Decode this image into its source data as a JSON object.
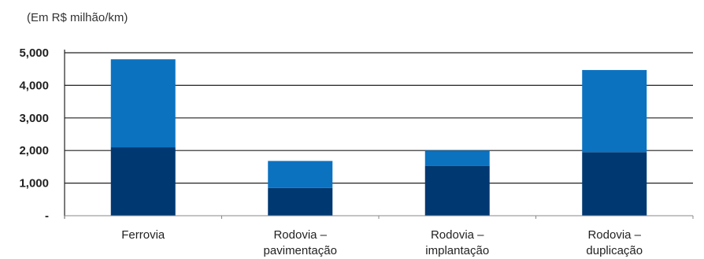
{
  "chart_data": {
    "type": "bar",
    "stacked": true,
    "unit_label": "(Em R$ milhão/km)",
    "categories": [
      [
        "Ferrovia"
      ],
      [
        "Rodovia –",
        "pavimentação"
      ],
      [
        "Rodovia –",
        "implantação"
      ],
      [
        "Rodovia –",
        "duplicação"
      ]
    ],
    "series": [
      {
        "values": [
          2100,
          850,
          1530,
          1950
        ],
        "color": "#003871"
      },
      {
        "values": [
          2700,
          830,
          470,
          2520
        ],
        "color": "#0b72c0"
      }
    ],
    "y_ticks": [
      "-",
      "1,000",
      "2,000",
      "3,000",
      "4,000",
      "5,000"
    ],
    "y_tick_values": [
      0,
      1000,
      2000,
      3000,
      4000,
      5000
    ],
    "ylim": [
      0,
      5000
    ],
    "grid": true
  }
}
